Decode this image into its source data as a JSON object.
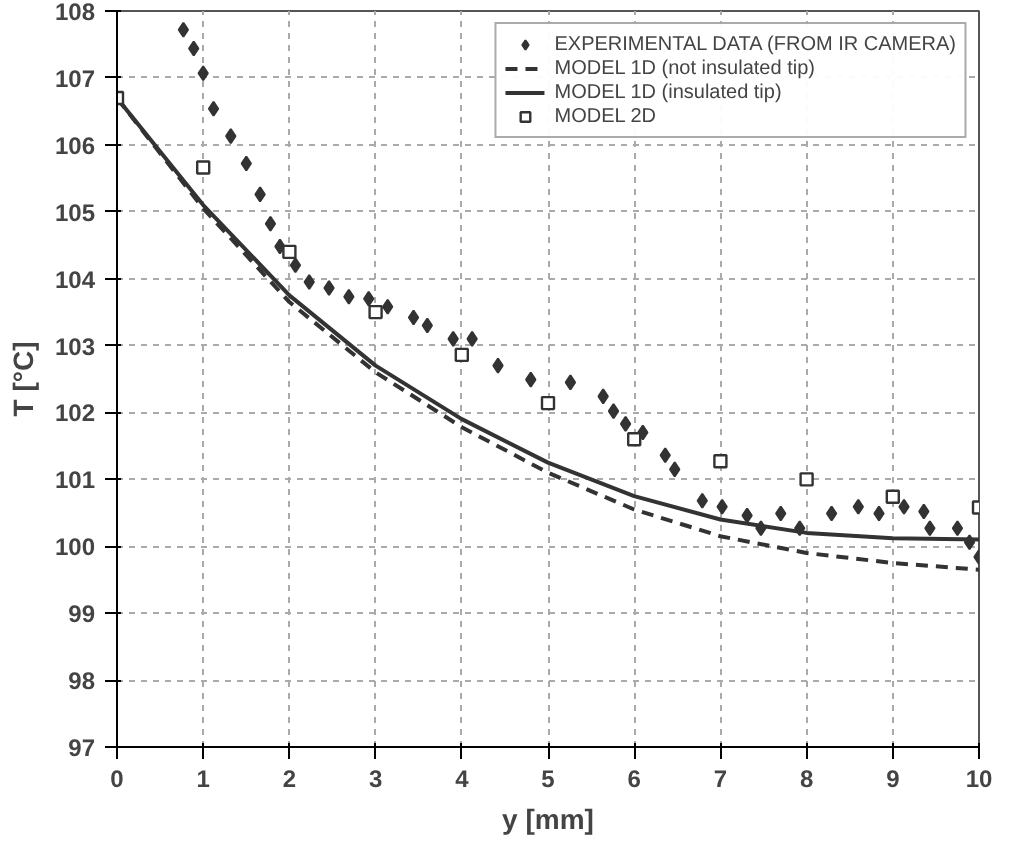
{
  "chart_data": {
    "type": "line",
    "xlabel": "y [mm]",
    "ylabel": "T [°C]",
    "xlim": [
      0,
      10
    ],
    "xticks": [
      0,
      1,
      2,
      3,
      4,
      5,
      6,
      7,
      8,
      9,
      10
    ],
    "ylim": [
      97,
      108
    ],
    "yticks": [
      97,
      98,
      99,
      100,
      101,
      102,
      103,
      104,
      105,
      106,
      107,
      108
    ],
    "grid": true,
    "legend": "top right",
    "series": [
      {
        "name": "EXPERIMENTAL DATA (FROM IR CAMERA)",
        "type": "scatter",
        "marker": "diamond",
        "color": "#333333",
        "x": [
          0.77,
          0.89,
          1.0,
          1.12,
          1.32,
          1.5,
          1.66,
          1.78,
          1.89,
          2.07,
          2.23,
          2.46,
          2.69,
          2.92,
          3.14,
          3.44,
          3.6,
          3.9,
          4.12,
          4.42,
          4.8,
          5.26,
          5.64,
          5.76,
          5.9,
          6.1,
          6.36,
          6.47,
          6.79,
          7.02,
          7.31,
          7.47,
          7.7,
          7.92,
          8.29,
          8.6,
          8.84,
          9.13,
          9.36,
          9.43,
          9.75,
          9.89,
          10.0
        ],
        "values": [
          107.72,
          107.44,
          107.07,
          106.54,
          106.13,
          105.72,
          105.26,
          104.82,
          104.48,
          104.2,
          103.95,
          103.86,
          103.73,
          103.7,
          103.58,
          103.42,
          103.3,
          103.1,
          103.1,
          102.7,
          102.49,
          102.45,
          102.24,
          102.02,
          101.83,
          101.7,
          101.36,
          101.15,
          100.68,
          100.59,
          100.46,
          100.27,
          100.49,
          100.27,
          100.49,
          100.59,
          100.49,
          100.59,
          100.52,
          100.27,
          100.27,
          100.06,
          99.84
        ]
      },
      {
        "name": "MODEL 1D (not insulated tip)",
        "line_style": "dashed",
        "color": "#333333",
        "x": [
          0,
          1,
          2,
          3,
          4,
          5,
          6,
          7,
          8,
          9,
          10
        ],
        "values": [
          106.7,
          105.05,
          103.65,
          102.6,
          101.78,
          101.1,
          100.55,
          100.15,
          99.9,
          99.75,
          99.65
        ]
      },
      {
        "name": "MODEL 1D (insulated tip)",
        "line_style": "solid",
        "color": "#333333",
        "x": [
          0,
          1,
          2,
          3,
          4,
          5,
          6,
          7,
          8,
          9,
          10
        ],
        "values": [
          106.7,
          105.1,
          103.75,
          102.7,
          101.9,
          101.25,
          100.75,
          100.4,
          100.2,
          100.12,
          100.1
        ]
      },
      {
        "name": "MODEL 2D",
        "type": "scatter",
        "marker": "square",
        "color": "#333333",
        "x": [
          0,
          1,
          2,
          3,
          4,
          5,
          6,
          7,
          8,
          9,
          10
        ],
        "values": [
          106.7,
          105.66,
          104.4,
          103.5,
          102.86,
          102.14,
          101.6,
          101.27,
          101.0,
          100.74,
          100.58
        ]
      }
    ]
  }
}
